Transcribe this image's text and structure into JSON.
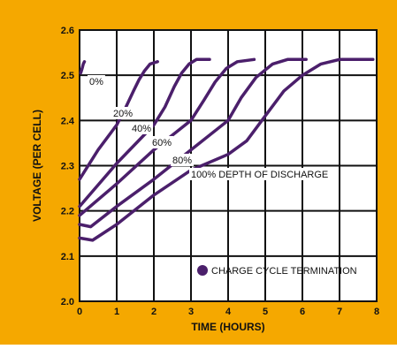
{
  "colors": {
    "frame": "#f5a800",
    "plot_background": "#ffffff",
    "grid": "#111111",
    "curve": "#4b1f6b",
    "text": "#111111"
  },
  "chart_data": {
    "type": "line",
    "xlabel": "TIME (HOURS)",
    "ylabel": "VOLTAGE (PER CELL)",
    "xlim": [
      0,
      8
    ],
    "ylim": [
      2.0,
      2.6
    ],
    "x_ticks": [
      "0",
      "1",
      "2",
      "3",
      "4",
      "5",
      "6",
      "7",
      "8"
    ],
    "y_ticks": [
      "2.0",
      "2.1",
      "2.2",
      "2.3",
      "2.4",
      "2.5",
      "2.6"
    ],
    "grid": true,
    "series": [
      {
        "name": "0%",
        "points": [
          [
            0.03,
            2.505
          ],
          [
            0.07,
            2.515
          ],
          [
            0.1,
            2.525
          ],
          [
            0.13,
            2.53
          ]
        ]
      },
      {
        "name": "20%",
        "points": [
          [
            0.0,
            2.27
          ],
          [
            0.5,
            2.335
          ],
          [
            1.0,
            2.39
          ],
          [
            1.25,
            2.43
          ],
          [
            1.45,
            2.465
          ],
          [
            1.6,
            2.49
          ],
          [
            1.75,
            2.51
          ],
          [
            1.9,
            2.525
          ],
          [
            2.1,
            2.53
          ]
        ]
      },
      {
        "name": "40%",
        "points": [
          [
            0.0,
            2.21
          ],
          [
            1.0,
            2.305
          ],
          [
            2.0,
            2.39
          ],
          [
            2.3,
            2.43
          ],
          [
            2.55,
            2.475
          ],
          [
            2.75,
            2.505
          ],
          [
            2.95,
            2.525
          ],
          [
            3.15,
            2.535
          ],
          [
            3.5,
            2.535
          ]
        ]
      },
      {
        "name": "60%",
        "points": [
          [
            0.0,
            2.19
          ],
          [
            1.0,
            2.26
          ],
          [
            2.0,
            2.335
          ],
          [
            3.0,
            2.4
          ],
          [
            3.35,
            2.445
          ],
          [
            3.65,
            2.485
          ],
          [
            3.95,
            2.515
          ],
          [
            4.25,
            2.53
          ],
          [
            4.7,
            2.535
          ]
        ]
      },
      {
        "name": "80%",
        "points": [
          [
            0.0,
            2.17
          ],
          [
            0.3,
            2.165
          ],
          [
            1.0,
            2.21
          ],
          [
            2.0,
            2.27
          ],
          [
            3.0,
            2.335
          ],
          [
            4.0,
            2.4
          ],
          [
            4.35,
            2.45
          ],
          [
            4.75,
            2.495
          ],
          [
            5.2,
            2.525
          ],
          [
            5.6,
            2.535
          ],
          [
            6.1,
            2.535
          ]
        ]
      },
      {
        "name": "100% DEPTH OF DISCHARGE",
        "points": [
          [
            0.0,
            2.14
          ],
          [
            0.35,
            2.135
          ],
          [
            1.0,
            2.17
          ],
          [
            2.0,
            2.235
          ],
          [
            3.0,
            2.29
          ],
          [
            4.0,
            2.325
          ],
          [
            4.5,
            2.355
          ],
          [
            5.0,
            2.41
          ],
          [
            5.5,
            2.465
          ],
          [
            6.0,
            2.5
          ],
          [
            6.5,
            2.525
          ],
          [
            7.0,
            2.535
          ],
          [
            7.9,
            2.535
          ]
        ]
      }
    ],
    "annotations": [
      "0%",
      "20%",
      "40%",
      "60%",
      "80%",
      "100% DEPTH OF DISCHARGE"
    ],
    "legend": {
      "label": "CHARGE CYCLE TERMINATION",
      "marker": "filled-circle",
      "placement": "bottom-right"
    }
  }
}
